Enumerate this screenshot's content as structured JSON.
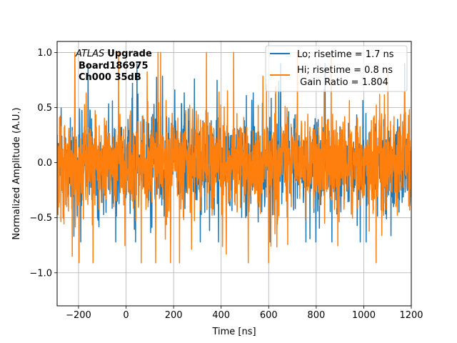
{
  "chart_data": {
    "type": "line",
    "xlabel": "Time [ns]",
    "ylabel": "Normalized Amplitude (A.U.)",
    "xlim": [
      -290,
      1200
    ],
    "ylim": [
      -1.3,
      1.1
    ],
    "xticks": [
      -200,
      0,
      200,
      400,
      600,
      800,
      1000,
      1200
    ],
    "xtick_labels": [
      "−200",
      "0",
      "200",
      "400",
      "600",
      "800",
      "1000",
      "1200"
    ],
    "yticks": [
      -1.0,
      -0.5,
      0.0,
      0.5,
      1.0
    ],
    "ytick_labels": [
      "−1.0",
      "−0.5",
      "0.0",
      "0.5",
      "1.0"
    ],
    "grid": true,
    "legend_position": "top-right",
    "annotation": {
      "line1_italic": "ATLAS",
      "line1_bold": "Upgrade",
      "line2": "Board186975",
      "line3": "Ch000 35dB"
    },
    "series": [
      {
        "name": "Lo; risetime = 1.7 ns",
        "color": "#1f77b4",
        "x_start": -290,
        "x_end": 1200,
        "n_points": 1500,
        "y_min": -0.72,
        "y_max": 0.9,
        "noise_std": 0.2
      },
      {
        "name": "Hi; risetime = 0.8 ns",
        "name_line2": " Gain Ratio = 1.804",
        "color": "#ff7f0e",
        "x_start": -290,
        "x_end": 1200,
        "n_points": 1500,
        "y_min": -0.91,
        "y_max": 1.0,
        "noise_std": 0.22
      }
    ]
  }
}
